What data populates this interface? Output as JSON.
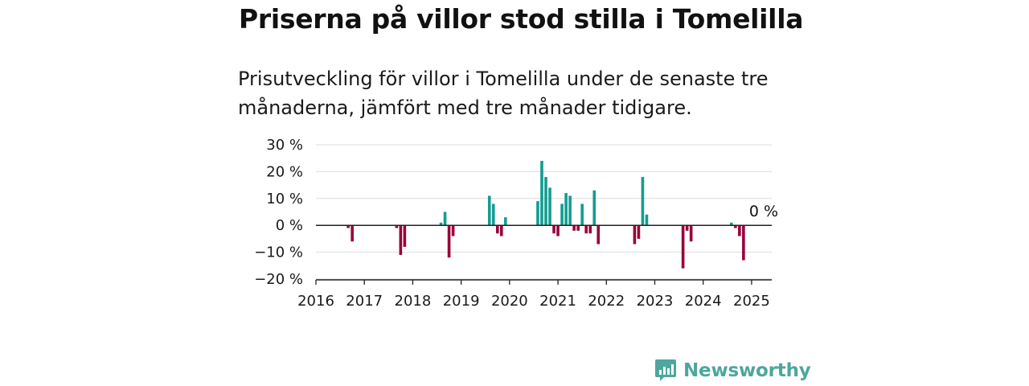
{
  "title": "Priserna på villor stod stilla i Tomelilla",
  "subtitle": "Prisutveckling för villor i Tomelilla under de senaste tre månaderna, jämfört med tre månader tidigare.",
  "brand": {
    "name": "Newsworthy",
    "color": "#4ea69d",
    "icon": "newsworthy-logo-icon"
  },
  "colors": {
    "positive": "#139c91",
    "negative": "#99003a",
    "grid": "#dddddd",
    "axis": "#222222"
  },
  "chart_data": {
    "type": "bar",
    "title": "",
    "xlabel": "",
    "ylabel": "",
    "ylim": [
      -20,
      30
    ],
    "xlim": [
      "2016-01",
      "2025-06"
    ],
    "y_ticks": [
      30,
      20,
      10,
      0,
      -10,
      -20
    ],
    "y_tick_labels": [
      "30 %",
      "20 %",
      "10 %",
      "0 %",
      "−10 %",
      "−20 %"
    ],
    "x_ticks": [
      "2016",
      "2017",
      "2018",
      "2019",
      "2020",
      "2021",
      "2022",
      "2023",
      "2024",
      "2025"
    ],
    "grid": true,
    "legend": "none",
    "annotations": [
      {
        "label": "0 %",
        "x": "2025-01",
        "y": 0
      }
    ],
    "series": [
      {
        "x": [
          "2016-09",
          "2016-10",
          "2017-09",
          "2017-10",
          "2017-11",
          "2018-08",
          "2018-09",
          "2018-10",
          "2018-11",
          "2019-08",
          "2019-09",
          "2019-10",
          "2019-11",
          "2019-12",
          "2020-08",
          "2020-09",
          "2020-10",
          "2020-11",
          "2020-12",
          "2021-01",
          "2021-02",
          "2021-03",
          "2021-04",
          "2021-05",
          "2021-06",
          "2021-07",
          "2021-08",
          "2021-09",
          "2021-10",
          "2021-11",
          "2022-08",
          "2022-09",
          "2022-10",
          "2022-11",
          "2023-08",
          "2023-09",
          "2023-10",
          "2024-08",
          "2024-09",
          "2024-10",
          "2024-11",
          "2024-12",
          "2025-01"
        ],
        "values": [
          -1,
          -6,
          -1,
          -11,
          -8,
          1,
          5,
          -12,
          -4,
          11,
          8,
          -3,
          -4,
          3,
          9,
          24,
          18,
          14,
          -3,
          -4,
          8,
          12,
          11,
          -2,
          -2,
          8,
          -3,
          -3,
          13,
          -7,
          -7,
          -5,
          18,
          4,
          -16,
          -2,
          -6,
          1,
          -1,
          -4,
          -13,
          0,
          0
        ]
      }
    ]
  }
}
